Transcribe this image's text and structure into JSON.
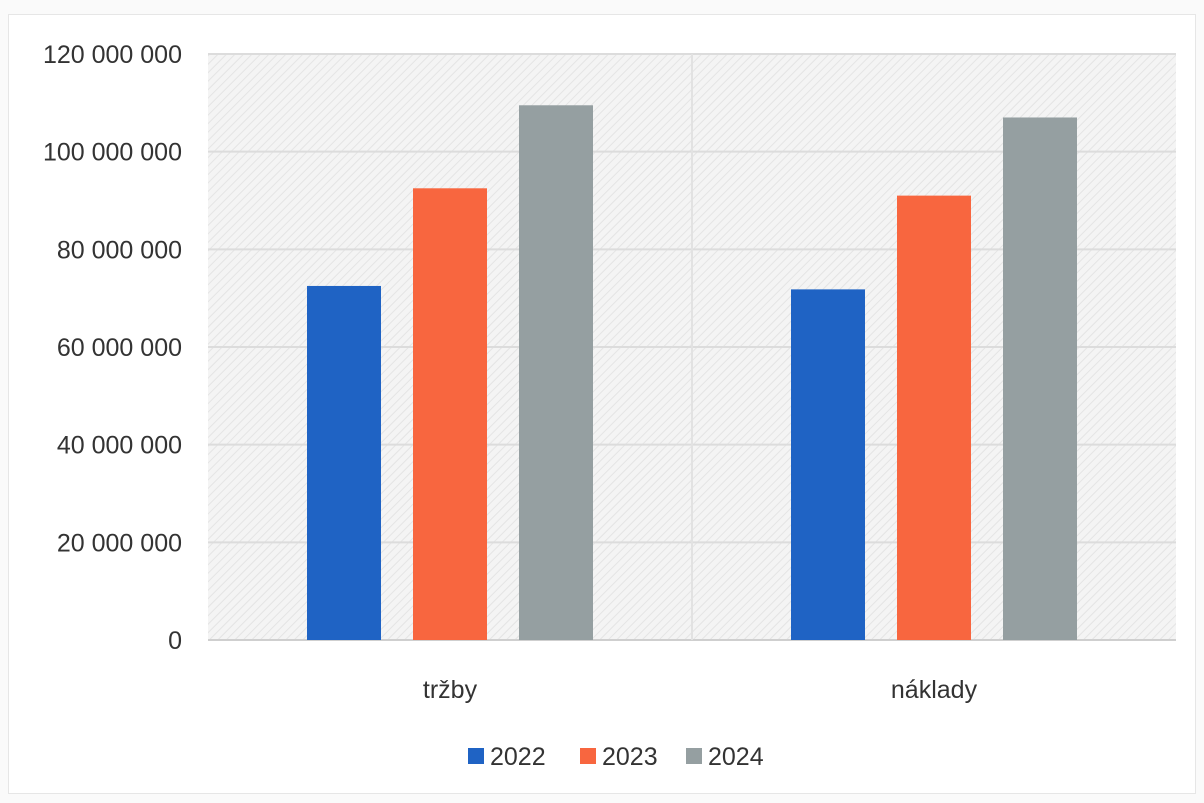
{
  "chart_data": {
    "type": "bar",
    "title": "",
    "xlabel": "",
    "ylabel": "",
    "categories": [
      "tržby",
      "náklady"
    ],
    "series": [
      {
        "name": "2022",
        "color": "#1f63c4",
        "values": [
          72500000,
          71800000
        ]
      },
      {
        "name": "2023",
        "color": "#f8663f",
        "values": [
          92500000,
          91000000
        ]
      },
      {
        "name": "2024",
        "color": "#959fa1",
        "values": [
          109500000,
          107000000
        ]
      }
    ],
    "ylim": [
      0,
      120000000
    ],
    "yticks": [
      {
        "value": 0,
        "label": "0"
      },
      {
        "value": 20000000,
        "label": "20 000 000"
      },
      {
        "value": 40000000,
        "label": "40 000 000"
      },
      {
        "value": 60000000,
        "label": "60 000 000"
      },
      {
        "value": 80000000,
        "label": "80 000 000"
      },
      {
        "value": 100000000,
        "label": "100 000 000"
      },
      {
        "value": 120000000,
        "label": "120 000 000"
      }
    ],
    "grid": true,
    "legend": "bottom"
  }
}
